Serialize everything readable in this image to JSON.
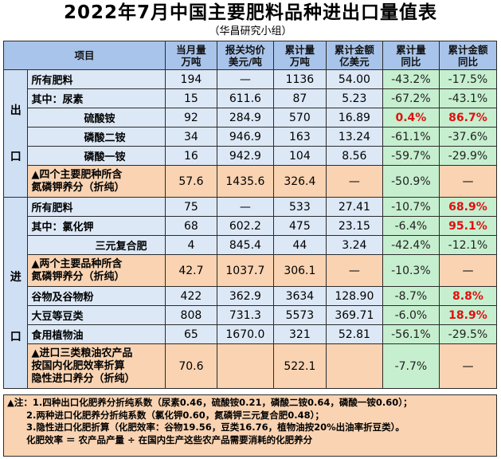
{
  "title": "2022年7月中国主要肥料品种进出口量值表",
  "subtitle": "（华昌研究小组）",
  "headers": {
    "item": "项目",
    "month_qty": [
      "当月量",
      "万吨"
    ],
    "avg_price": [
      "报关均价",
      "美元/吨"
    ],
    "cum_qty": [
      "累计量",
      "万吨"
    ],
    "cum_amt": [
      "累计金额",
      "亿美元"
    ],
    "cum_qty_yoy": [
      "累计量",
      "同比"
    ],
    "cum_amt_yoy": [
      "累计金额",
      "同比"
    ]
  },
  "sections": {
    "export": "出口",
    "import": "进口"
  },
  "export_rows": [
    {
      "label": "所有肥料",
      "month_qty": "194",
      "avg_price": "—",
      "cum_qty": "1136",
      "cum_amt": "54.00",
      "cum_qty_yoy": "-43.2%",
      "cum_amt_yoy": "-17.5%"
    },
    {
      "label": "其中：尿素",
      "month_qty": "15",
      "avg_price": "611.6",
      "cum_qty": "87",
      "cum_amt": "5.23",
      "cum_qty_yoy": "-67.2%",
      "cum_amt_yoy": "-43.1%"
    },
    {
      "label": "硫酸铵",
      "month_qty": "92",
      "avg_price": "284.9",
      "cum_qty": "570",
      "cum_amt": "16.89",
      "cum_qty_yoy": "0.4%",
      "cum_amt_yoy": "86.7%"
    },
    {
      "label": "磷酸二铵",
      "month_qty": "34",
      "avg_price": "946.9",
      "cum_qty": "163",
      "cum_amt": "13.24",
      "cum_qty_yoy": "-61.1%",
      "cum_amt_yoy": "-37.6%"
    },
    {
      "label": "磷酸一铵",
      "month_qty": "16",
      "avg_price": "942.9",
      "cum_qty": "104",
      "cum_amt": "8.56",
      "cum_qty_yoy": "-59.7%",
      "cum_amt_yoy": "-29.9%"
    },
    {
      "label_lines": [
        "▲四个主要肥种所含",
        "氮磷钾养分（折纯）"
      ],
      "month_qty": "57.6",
      "avg_price": "1435.6",
      "cum_qty": "326.4",
      "cum_amt": "—",
      "cum_qty_yoy": "-50.9%",
      "cum_amt_yoy": "—"
    }
  ],
  "import_rows": [
    {
      "label": "所有肥料",
      "month_qty": "75",
      "avg_price": "—",
      "cum_qty": "533",
      "cum_amt": "27.41",
      "cum_qty_yoy": "-10.7%",
      "cum_amt_yoy": "68.9%"
    },
    {
      "label": "其中：氯化钾",
      "month_qty": "68",
      "avg_price": "602.2",
      "cum_qty": "475",
      "cum_amt": "23.15",
      "cum_qty_yoy": "-6.4%",
      "cum_amt_yoy": "95.1%"
    },
    {
      "label": "三元复合肥",
      "month_qty": "4",
      "avg_price": "845.4",
      "cum_qty": "44",
      "cum_amt": "3.24",
      "cum_qty_yoy": "-42.4%",
      "cum_amt_yoy": "-12.1%"
    },
    {
      "label_lines": [
        "▲两个主要品种所含",
        "氮磷钾养分（折纯）"
      ],
      "month_qty": "42.7",
      "avg_price": "1037.7",
      "cum_qty": "306.1",
      "cum_amt": "—",
      "cum_qty_yoy": "-10.3%",
      "cum_amt_yoy": "—"
    },
    {
      "label": "谷物及谷物粉",
      "month_qty": "422",
      "avg_price": "362.9",
      "cum_qty": "3634",
      "cum_amt": "128.90",
      "cum_qty_yoy": "-8.7%",
      "cum_amt_yoy": "8.8%"
    },
    {
      "label": "大豆等豆类",
      "month_qty": "808",
      "avg_price": "731.3",
      "cum_qty": "5573",
      "cum_amt": "369.71",
      "cum_qty_yoy": "-6.0%",
      "cum_amt_yoy": "18.9%"
    },
    {
      "label": "食用植物油",
      "month_qty": "65",
      "avg_price": "1670.0",
      "cum_qty": "321",
      "cum_amt": "52.81",
      "cum_qty_yoy": "-56.1%",
      "cum_amt_yoy": "-29.5%"
    },
    {
      "label_lines": [
        "▲进口三类粮油农产品",
        "按国内化肥效率折算",
        "隐性进口养分（折纯）"
      ],
      "month_qty": "70.6",
      "avg_price": "",
      "cum_qty": "522.1",
      "cum_amt": "",
      "cum_qty_yoy": "-7.7%",
      "cum_amt_yoy": "—"
    }
  ],
  "notes": [
    "▲注：1.四种出口化肥养分折纯系数（尿素0.46，硫酸铵0.21，磷酸二铵0.64，磷酸一铵0.60）；",
    "2.两种进口化肥养分折纯系数（氯化钾0.60，氮磷钾三元复合肥0.48）；",
    "3.隐性进口化肥折算（化肥效率：谷物19.56，豆类16.76，植物油按20%出油率折豆类）。",
    "化肥效率 ＝ 农产品产量 ÷ 在国内生产这些农产品需要消耗的化肥养分"
  ],
  "colors": {
    "header_bg": "#a9c4ea",
    "light_blue_row": "#dce8f6",
    "peach_row": "#f9d3b2",
    "green_cell": "#c6efcf",
    "red_text": "#e01010"
  }
}
